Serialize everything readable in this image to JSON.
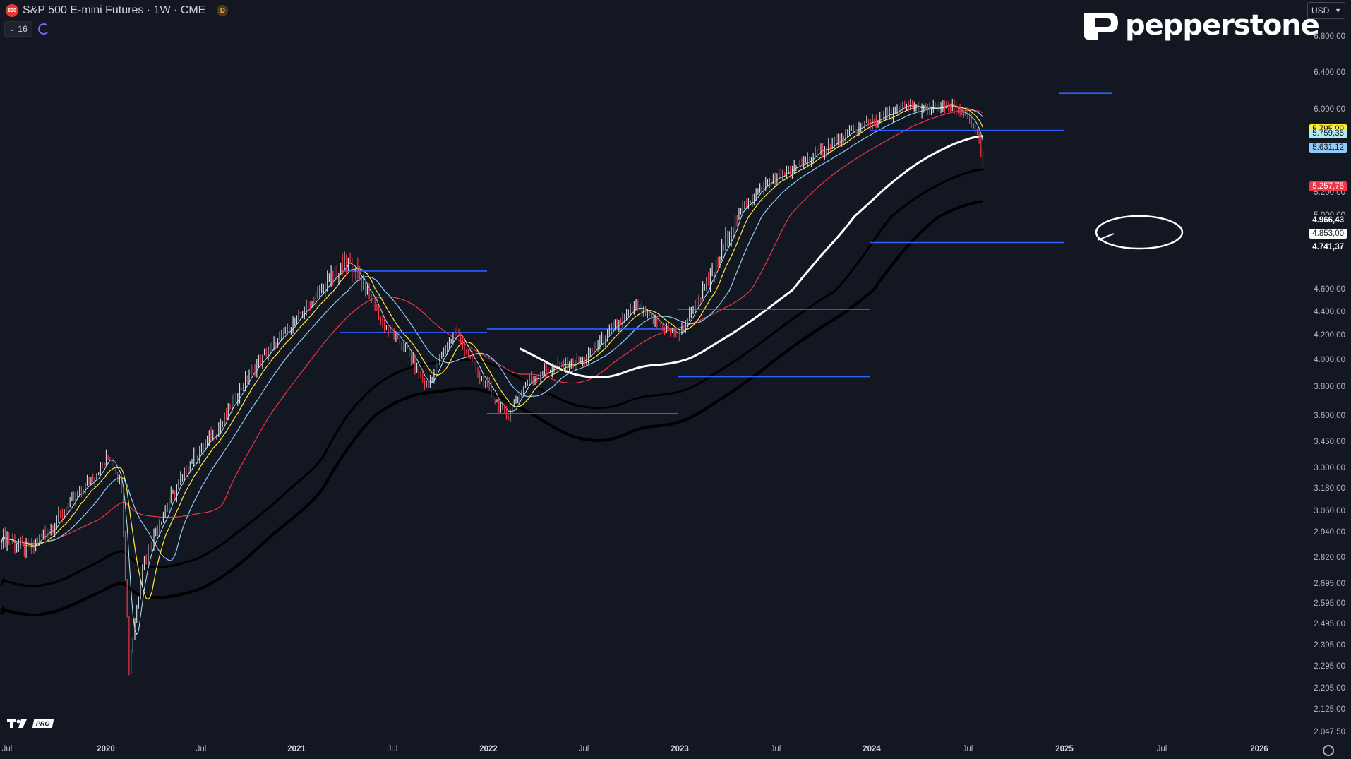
{
  "header": {
    "symbol_badge": "500",
    "title": "S&P 500 E-mini Futures · 1W · CME",
    "data_badge": "D",
    "indicator_count": "16"
  },
  "brand": {
    "name": "pepperstone"
  },
  "currency": {
    "label": "USD"
  },
  "price_axis": {
    "ticks": [
      "6.800,00",
      "6.400,00",
      "6.000,00",
      "5.200,00",
      "5.000,00",
      "4.600,00",
      "4.400,00",
      "4.200,00",
      "4.000,00",
      "3.800,00",
      "3.600,00",
      "3.450,00",
      "3.300,00",
      "3.180,00",
      "3.060,00",
      "2.940,00",
      "2.820,00",
      "2.695,00",
      "2.595,00",
      "2.495,00",
      "2.395,00",
      "2.295,00",
      "2.205,00",
      "2.125,00",
      "2.047,50"
    ],
    "labels": [
      {
        "text": "5.795,00",
        "bg": "#ffeb3b",
        "fg": "#131722"
      },
      {
        "text": "5.759,35",
        "bg": "#b2ebf2",
        "fg": "#131722"
      },
      {
        "text": "5.631,12",
        "bg": "#90caf9",
        "fg": "#131722"
      },
      {
        "text": "5.257,75",
        "bg": "#f23645",
        "fg": "#ffffff"
      },
      {
        "text": "4.966,43",
        "bg": "#131722",
        "fg": "#ffffff"
      },
      {
        "text": "4.853,00",
        "bg": "#ffffff",
        "fg": "#131722"
      },
      {
        "text": "4.741,37",
        "bg": "#131722",
        "fg": "#ffffff"
      }
    ]
  },
  "time_axis": {
    "labels": [
      {
        "text": "Jul",
        "bold": false
      },
      {
        "text": "2020",
        "bold": true
      },
      {
        "text": "Jul",
        "bold": false
      },
      {
        "text": "2021",
        "bold": true
      },
      {
        "text": "Jul",
        "bold": false
      },
      {
        "text": "2022",
        "bold": true
      },
      {
        "text": "Jul",
        "bold": false
      },
      {
        "text": "2023",
        "bold": true
      },
      {
        "text": "Jul",
        "bold": false
      },
      {
        "text": "2024",
        "bold": true
      },
      {
        "text": "Jul",
        "bold": false
      },
      {
        "text": "2025",
        "bold": true
      },
      {
        "text": "Jul",
        "bold": false
      },
      {
        "text": "2026",
        "bold": true
      }
    ]
  },
  "footer": {
    "tv_label": "PRO"
  },
  "colors": {
    "background": "#131722",
    "up": "#d1d4dc",
    "down": "#f23645",
    "level": "#2962ff",
    "ma_fast": "#b2ebf2",
    "ma_yellow": "#ffeb3b",
    "ma_blue": "#90caf9",
    "ma_red": "#f23645",
    "ma_black": "#000000",
    "ma_white": "#ffffff"
  },
  "chart_data": {
    "type": "candlestick",
    "horizontal_levels": [
      5795,
      4853,
      4200,
      3500
    ]
  }
}
